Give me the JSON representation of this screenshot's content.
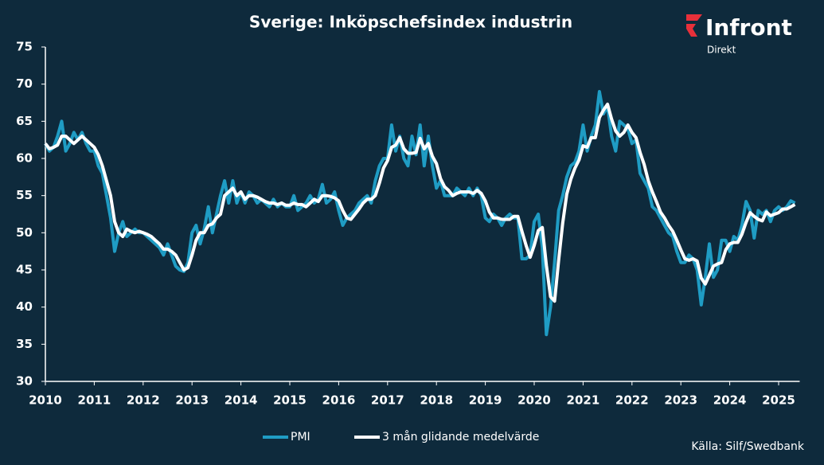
{
  "chart_data": {
    "type": "line",
    "title": "Sverige: Inköpschefsindex industrin",
    "logo": "Infront",
    "logo_sub": "Direkt",
    "source": "Källa:  Silf/Swedbank",
    "categories": [
      "2010",
      null,
      null,
      null,
      null,
      null,
      null,
      null,
      null,
      null,
      null,
      null,
      "2011",
      null,
      null,
      null,
      null,
      null,
      null,
      null,
      null,
      null,
      null,
      null,
      "2012",
      null,
      null,
      null,
      null,
      null,
      null,
      null,
      null,
      null,
      null,
      null,
      "2013",
      null,
      null,
      null,
      null,
      null,
      null,
      null,
      null,
      null,
      null,
      null,
      "2014",
      null,
      null,
      null,
      null,
      null,
      null,
      null,
      null,
      null,
      null,
      null,
      "2015",
      null,
      null,
      null,
      null,
      null,
      null,
      null,
      null,
      null,
      null,
      null,
      "2016",
      null,
      null,
      null,
      null,
      null,
      null,
      null,
      null,
      null,
      null,
      null,
      "2017",
      null,
      null,
      null,
      null,
      null,
      null,
      null,
      null,
      null,
      null,
      null,
      "2018",
      null,
      null,
      null,
      null,
      null,
      null,
      null,
      null,
      null,
      null,
      null,
      "2019",
      null,
      null,
      null,
      null,
      null,
      null,
      null,
      null,
      null,
      null,
      null,
      "2020",
      null,
      null,
      null,
      null,
      null,
      null,
      null,
      null,
      null,
      null,
      null,
      "2021",
      null,
      null,
      null,
      null,
      null,
      null,
      null,
      null,
      null,
      null,
      null,
      "2022",
      null,
      null,
      null,
      null,
      null,
      null,
      null,
      null,
      null,
      null,
      null,
      "2023",
      null,
      null,
      null,
      null,
      null,
      null,
      null,
      null,
      null,
      null,
      null,
      "2024",
      null,
      null,
      null,
      null,
      null,
      null,
      null,
      null,
      null,
      null,
      null,
      "2025",
      null,
      null,
      null,
      null
    ],
    "series": [
      {
        "name": "PMI",
        "color": "#1f9cc4",
        "width": 4,
        "values": [
          62,
          61,
          61.5,
          63,
          65,
          61,
          62,
          63.5,
          62.5,
          63.5,
          62,
          61,
          61,
          59,
          58,
          55,
          52,
          47.5,
          50,
          51.5,
          49.5,
          50,
          50.5,
          50,
          50,
          49.5,
          49,
          48.5,
          48,
          47,
          48.5,
          47,
          45.5,
          45,
          44.8,
          46,
          50,
          51,
          48.5,
          50.5,
          53.5,
          50,
          52.5,
          55,
          57,
          54,
          57,
          54,
          55.5,
          54,
          55.5,
          55,
          54,
          54.5,
          54,
          53.5,
          54.5,
          53.5,
          54,
          53.5,
          53.5,
          55,
          53,
          53.5,
          54,
          55,
          54,
          54.5,
          56.5,
          54,
          54.5,
          55.5,
          53,
          51,
          52,
          52.5,
          53,
          54,
          54.5,
          55,
          54,
          57,
          59,
          60,
          60,
          64.5,
          61,
          63,
          60,
          59,
          63,
          60.5,
          64.5,
          59,
          63,
          59,
          56,
          57,
          55,
          55,
          55,
          56,
          55.5,
          55,
          56,
          55,
          56,
          55,
          52,
          51.5,
          52.5,
          52,
          51,
          52,
          52.5,
          52,
          52,
          46.5,
          46.5,
          47,
          51.5,
          52.5,
          48,
          36.3,
          40,
          46,
          53,
          55,
          57.5,
          59,
          59.5,
          61,
          64.5,
          61,
          63,
          64.5,
          69,
          66,
          67,
          63,
          61,
          65,
          64.5,
          64,
          62,
          62.5,
          58,
          57,
          56,
          53.5,
          53,
          52,
          51,
          50,
          49.5,
          47.5,
          46,
          46,
          47,
          46.5,
          45,
          40.3,
          44,
          48.5,
          44,
          45,
          49,
          49,
          47.5,
          49.5,
          49,
          51,
          54.2,
          53,
          49.3,
          53,
          52.5,
          53,
          51.5,
          53,
          53.5,
          53,
          53.5,
          54.3,
          54
        ]
      },
      {
        "name": "3 mån glidande medelvärde",
        "color": "#ffffff",
        "width": 4,
        "values": [
          62,
          61.3,
          61.5,
          61.8,
          63,
          63,
          62.5,
          62,
          62.5,
          63,
          62.5,
          62,
          61.5,
          60.5,
          59,
          57,
          55,
          51.5,
          50,
          49.5,
          50.5,
          50.2,
          50,
          50.2,
          50,
          49.8,
          49.5,
          49,
          48.5,
          47.8,
          47.8,
          47.5,
          47,
          46,
          45,
          45.3,
          47,
          49,
          50,
          50,
          51,
          51.2,
          52,
          52.5,
          55,
          55.5,
          56,
          55,
          55.5,
          54.5,
          55,
          55,
          54.8,
          54.5,
          54.2,
          54,
          54,
          53.8,
          54,
          53.7,
          53.7,
          54,
          53.8,
          53.8,
          53.5,
          54,
          54.5,
          54.2,
          55,
          55,
          54.9,
          54.7,
          54.3,
          53,
          52,
          51.8,
          52.5,
          53.2,
          54,
          54.5,
          54.5,
          55,
          56.7,
          58.7,
          59.7,
          61.5,
          61.8,
          62.8,
          61.3,
          60.7,
          60.7,
          60.8,
          62.7,
          61.3,
          62,
          60.3,
          59.3,
          57.3,
          56.2,
          55.7,
          55,
          55.3,
          55.5,
          55.5,
          55.5,
          55.3,
          55.7,
          55.3,
          54.3,
          52.8,
          52,
          52,
          51.8,
          51.8,
          51.8,
          52.2,
          52.2,
          50.2,
          48.3,
          46.7,
          48.3,
          50.3,
          50.7,
          45.6,
          41.4,
          40.8,
          46.3,
          51.3,
          55.2,
          57.2,
          58.7,
          59.8,
          61.7,
          61.5,
          62.8,
          62.8,
          65.5,
          66.5,
          67.3,
          65.3,
          63.7,
          63,
          63.5,
          64.5,
          63.5,
          62.8,
          60.8,
          59.2,
          57,
          55.5,
          54.2,
          52.8,
          52,
          51,
          50.2,
          49,
          47.7,
          46.5,
          46.3,
          46.5,
          46.2,
          43.9,
          43.1,
          44.3,
          45.5,
          45.8,
          46,
          47.7,
          48.5,
          48.7,
          48.7,
          49.8,
          51.4,
          52.7,
          52.2,
          51.8,
          51.6,
          52.8,
          52.3,
          52.5,
          52.7,
          53.2,
          53.2,
          53.5,
          53.8
        ]
      }
    ],
    "ylim": [
      30,
      75
    ],
    "yticks": [
      30,
      35,
      40,
      45,
      50,
      55,
      60,
      65,
      70,
      75
    ],
    "grid": false,
    "legend": "bottom"
  }
}
